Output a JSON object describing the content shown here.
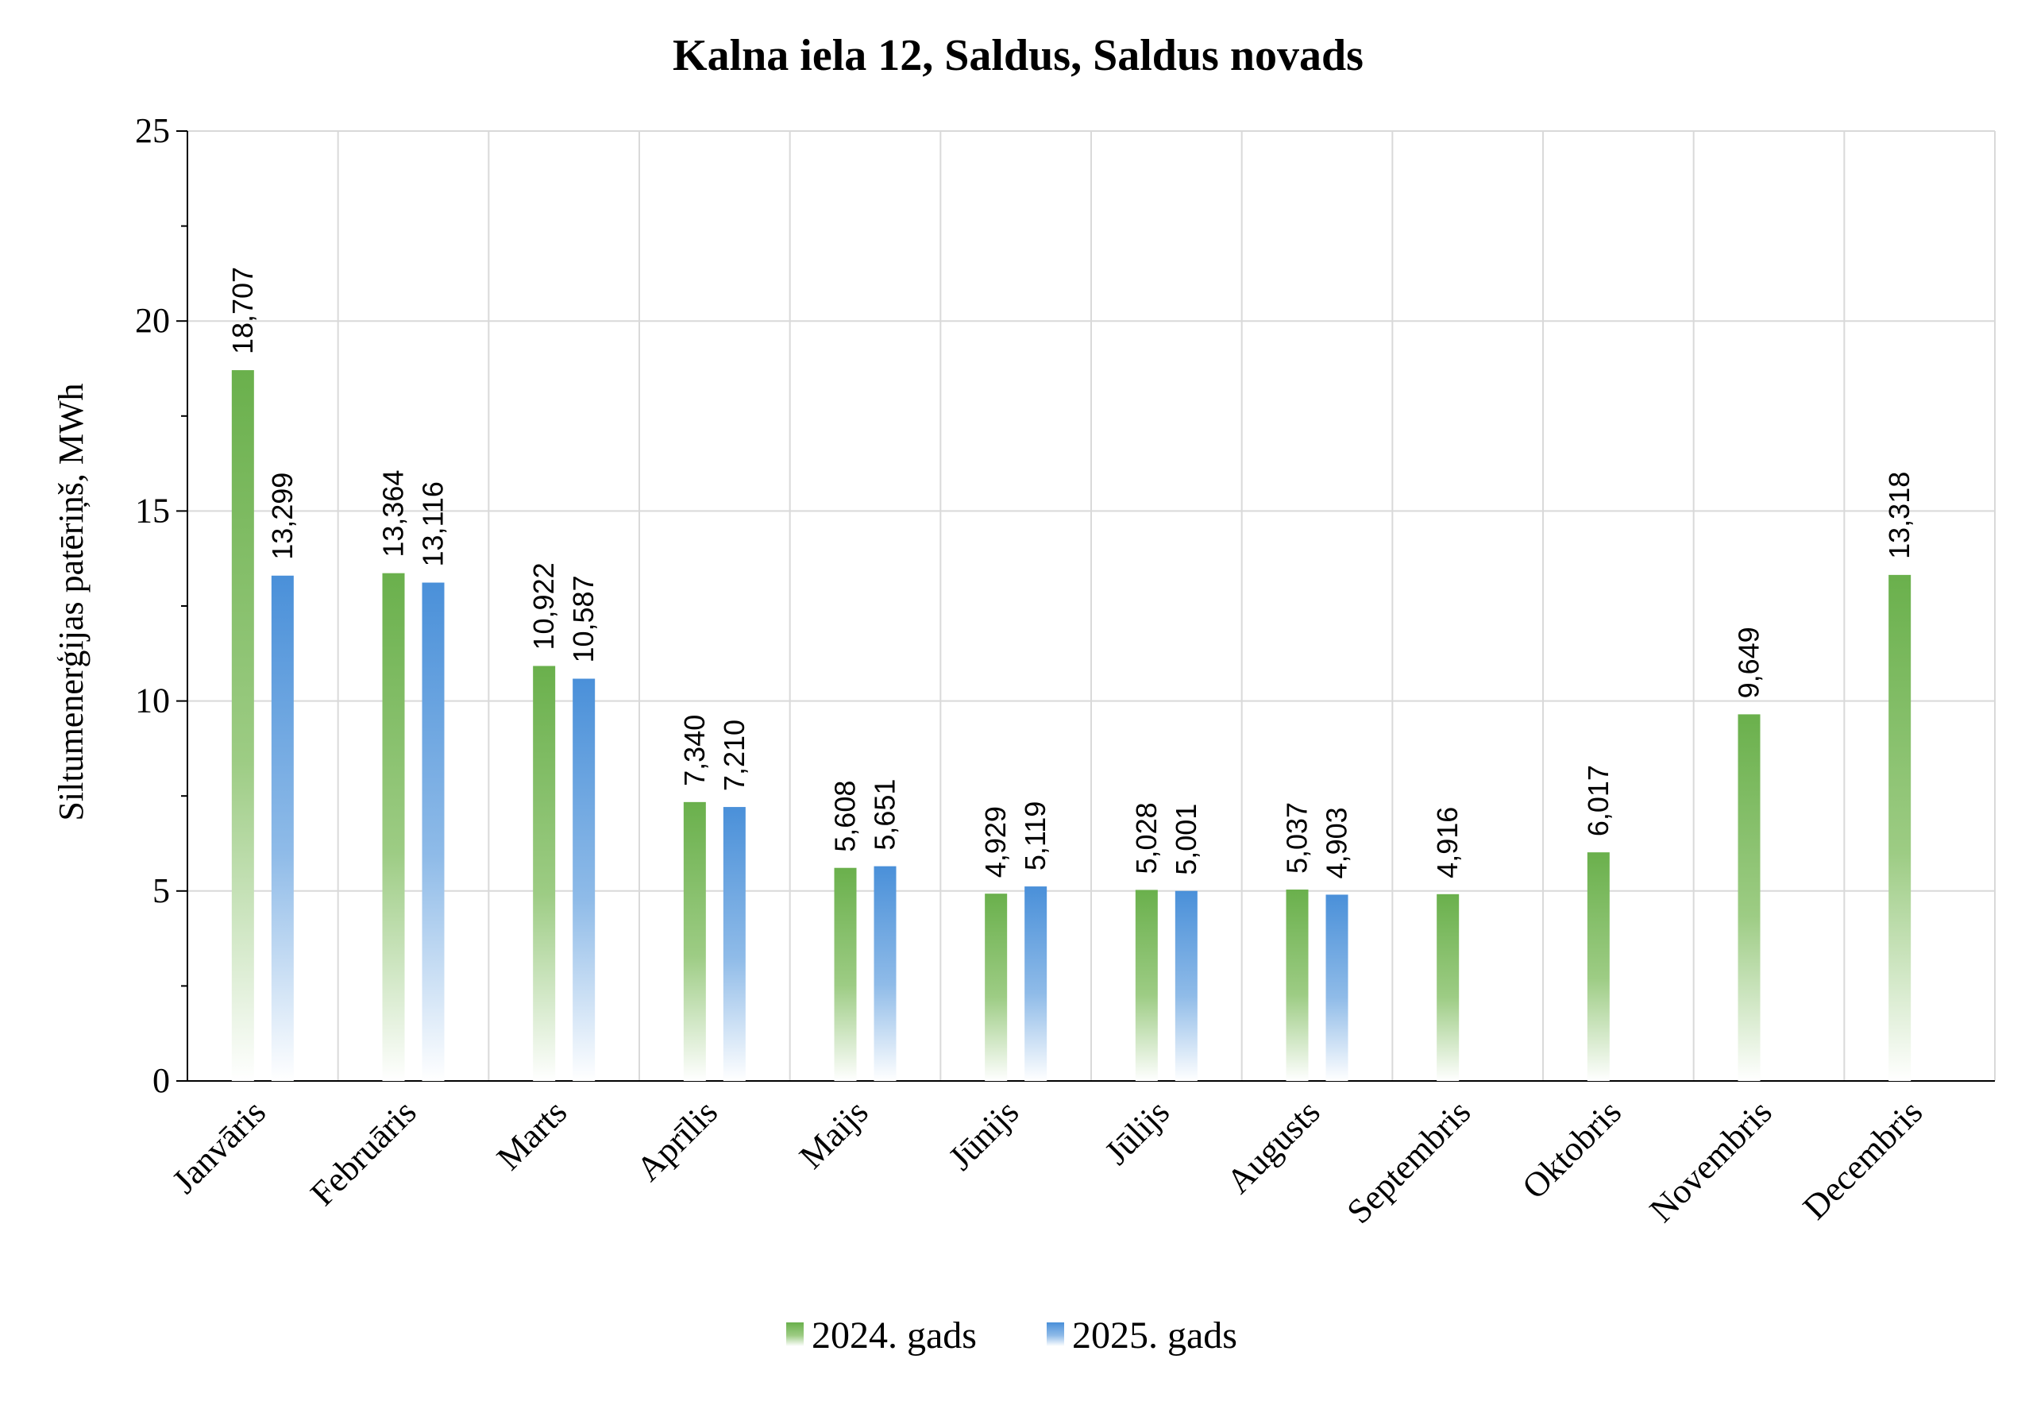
{
  "chart_data": {
    "type": "bar",
    "title": "Kalna iela 12, Saldus, Saldus novads",
    "xlabel": "",
    "ylabel": "Siltumenerģijas patēriņš, MWh",
    "ylim": [
      0,
      25
    ],
    "yticks": [
      0,
      5,
      10,
      15,
      20,
      25
    ],
    "grid": true,
    "legend_position": "bottom",
    "categories": [
      "Janvāris",
      "Februāris",
      "Marts",
      "Aprīlis",
      "Maijs",
      "Jūnijs",
      "Jūlijs",
      "Augusts",
      "Septembris",
      "Oktobris",
      "Novembris",
      "Decembris"
    ],
    "series": [
      {
        "name": "2024. gads",
        "color": "#6ab04c",
        "values": [
          18.707,
          13.364,
          10.922,
          7.34,
          5.608,
          4.929,
          5.028,
          5.037,
          4.916,
          6.017,
          9.649,
          13.318
        ],
        "labels": [
          "18,707",
          "13,364",
          "10,922",
          "7,340",
          "5,608",
          "4,929",
          "5,028",
          "5,037",
          "4,916",
          "6,017",
          "9,649",
          "13,318"
        ]
      },
      {
        "name": "2025. gads",
        "color": "#4a90d9",
        "values": [
          13.299,
          13.116,
          10.587,
          7.21,
          5.651,
          5.119,
          5.001,
          4.903,
          null,
          null,
          null,
          null
        ],
        "labels": [
          "13,299",
          "13,116",
          "10,587",
          "7,210",
          "5,651",
          "5,119",
          "5,001",
          "4,903",
          "",
          "",
          "",
          ""
        ]
      }
    ]
  }
}
